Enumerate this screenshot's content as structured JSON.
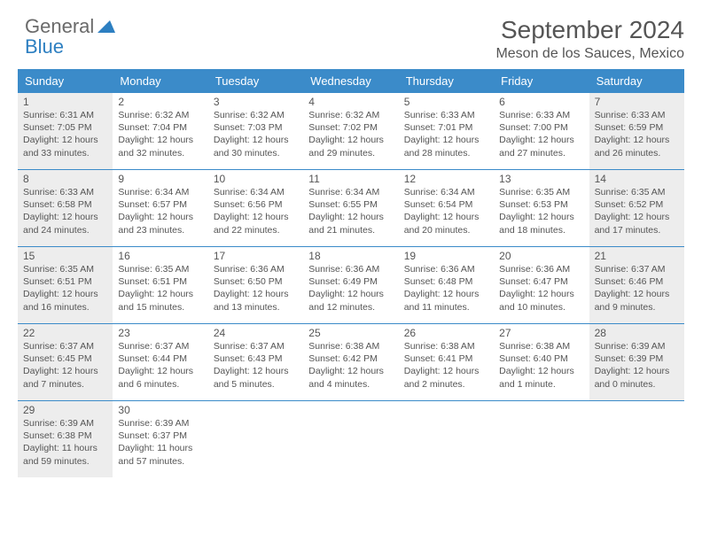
{
  "brand": {
    "part1": "General",
    "part2": "Blue"
  },
  "title": "September 2024",
  "location": "Meson de los Sauces, Mexico",
  "colors": {
    "header_bg": "#3b8bc9",
    "header_text": "#ffffff",
    "shaded_bg": "#ededed",
    "border": "#3b8bc9",
    "text": "#555555",
    "brand_blue": "#2d7fc1"
  },
  "day_names": [
    "Sunday",
    "Monday",
    "Tuesday",
    "Wednesday",
    "Thursday",
    "Friday",
    "Saturday"
  ],
  "weeks": [
    [
      {
        "n": "1",
        "shaded": true,
        "sr": "Sunrise: 6:31 AM",
        "ss": "Sunset: 7:05 PM",
        "dl1": "Daylight: 12 hours",
        "dl2": "and 33 minutes."
      },
      {
        "n": "2",
        "shaded": false,
        "sr": "Sunrise: 6:32 AM",
        "ss": "Sunset: 7:04 PM",
        "dl1": "Daylight: 12 hours",
        "dl2": "and 32 minutes."
      },
      {
        "n": "3",
        "shaded": false,
        "sr": "Sunrise: 6:32 AM",
        "ss": "Sunset: 7:03 PM",
        "dl1": "Daylight: 12 hours",
        "dl2": "and 30 minutes."
      },
      {
        "n": "4",
        "shaded": false,
        "sr": "Sunrise: 6:32 AM",
        "ss": "Sunset: 7:02 PM",
        "dl1": "Daylight: 12 hours",
        "dl2": "and 29 minutes."
      },
      {
        "n": "5",
        "shaded": false,
        "sr": "Sunrise: 6:33 AM",
        "ss": "Sunset: 7:01 PM",
        "dl1": "Daylight: 12 hours",
        "dl2": "and 28 minutes."
      },
      {
        "n": "6",
        "shaded": false,
        "sr": "Sunrise: 6:33 AM",
        "ss": "Sunset: 7:00 PM",
        "dl1": "Daylight: 12 hours",
        "dl2": "and 27 minutes."
      },
      {
        "n": "7",
        "shaded": true,
        "sr": "Sunrise: 6:33 AM",
        "ss": "Sunset: 6:59 PM",
        "dl1": "Daylight: 12 hours",
        "dl2": "and 26 minutes."
      }
    ],
    [
      {
        "n": "8",
        "shaded": true,
        "sr": "Sunrise: 6:33 AM",
        "ss": "Sunset: 6:58 PM",
        "dl1": "Daylight: 12 hours",
        "dl2": "and 24 minutes."
      },
      {
        "n": "9",
        "shaded": false,
        "sr": "Sunrise: 6:34 AM",
        "ss": "Sunset: 6:57 PM",
        "dl1": "Daylight: 12 hours",
        "dl2": "and 23 minutes."
      },
      {
        "n": "10",
        "shaded": false,
        "sr": "Sunrise: 6:34 AM",
        "ss": "Sunset: 6:56 PM",
        "dl1": "Daylight: 12 hours",
        "dl2": "and 22 minutes."
      },
      {
        "n": "11",
        "shaded": false,
        "sr": "Sunrise: 6:34 AM",
        "ss": "Sunset: 6:55 PM",
        "dl1": "Daylight: 12 hours",
        "dl2": "and 21 minutes."
      },
      {
        "n": "12",
        "shaded": false,
        "sr": "Sunrise: 6:34 AM",
        "ss": "Sunset: 6:54 PM",
        "dl1": "Daylight: 12 hours",
        "dl2": "and 20 minutes."
      },
      {
        "n": "13",
        "shaded": false,
        "sr": "Sunrise: 6:35 AM",
        "ss": "Sunset: 6:53 PM",
        "dl1": "Daylight: 12 hours",
        "dl2": "and 18 minutes."
      },
      {
        "n": "14",
        "shaded": true,
        "sr": "Sunrise: 6:35 AM",
        "ss": "Sunset: 6:52 PM",
        "dl1": "Daylight: 12 hours",
        "dl2": "and 17 minutes."
      }
    ],
    [
      {
        "n": "15",
        "shaded": true,
        "sr": "Sunrise: 6:35 AM",
        "ss": "Sunset: 6:51 PM",
        "dl1": "Daylight: 12 hours",
        "dl2": "and 16 minutes."
      },
      {
        "n": "16",
        "shaded": false,
        "sr": "Sunrise: 6:35 AM",
        "ss": "Sunset: 6:51 PM",
        "dl1": "Daylight: 12 hours",
        "dl2": "and 15 minutes."
      },
      {
        "n": "17",
        "shaded": false,
        "sr": "Sunrise: 6:36 AM",
        "ss": "Sunset: 6:50 PM",
        "dl1": "Daylight: 12 hours",
        "dl2": "and 13 minutes."
      },
      {
        "n": "18",
        "shaded": false,
        "sr": "Sunrise: 6:36 AM",
        "ss": "Sunset: 6:49 PM",
        "dl1": "Daylight: 12 hours",
        "dl2": "and 12 minutes."
      },
      {
        "n": "19",
        "shaded": false,
        "sr": "Sunrise: 6:36 AM",
        "ss": "Sunset: 6:48 PM",
        "dl1": "Daylight: 12 hours",
        "dl2": "and 11 minutes."
      },
      {
        "n": "20",
        "shaded": false,
        "sr": "Sunrise: 6:36 AM",
        "ss": "Sunset: 6:47 PM",
        "dl1": "Daylight: 12 hours",
        "dl2": "and 10 minutes."
      },
      {
        "n": "21",
        "shaded": true,
        "sr": "Sunrise: 6:37 AM",
        "ss": "Sunset: 6:46 PM",
        "dl1": "Daylight: 12 hours",
        "dl2": "and 9 minutes."
      }
    ],
    [
      {
        "n": "22",
        "shaded": true,
        "sr": "Sunrise: 6:37 AM",
        "ss": "Sunset: 6:45 PM",
        "dl1": "Daylight: 12 hours",
        "dl2": "and 7 minutes."
      },
      {
        "n": "23",
        "shaded": false,
        "sr": "Sunrise: 6:37 AM",
        "ss": "Sunset: 6:44 PM",
        "dl1": "Daylight: 12 hours",
        "dl2": "and 6 minutes."
      },
      {
        "n": "24",
        "shaded": false,
        "sr": "Sunrise: 6:37 AM",
        "ss": "Sunset: 6:43 PM",
        "dl1": "Daylight: 12 hours",
        "dl2": "and 5 minutes."
      },
      {
        "n": "25",
        "shaded": false,
        "sr": "Sunrise: 6:38 AM",
        "ss": "Sunset: 6:42 PM",
        "dl1": "Daylight: 12 hours",
        "dl2": "and 4 minutes."
      },
      {
        "n": "26",
        "shaded": false,
        "sr": "Sunrise: 6:38 AM",
        "ss": "Sunset: 6:41 PM",
        "dl1": "Daylight: 12 hours",
        "dl2": "and 2 minutes."
      },
      {
        "n": "27",
        "shaded": false,
        "sr": "Sunrise: 6:38 AM",
        "ss": "Sunset: 6:40 PM",
        "dl1": "Daylight: 12 hours",
        "dl2": "and 1 minute."
      },
      {
        "n": "28",
        "shaded": true,
        "sr": "Sunrise: 6:39 AM",
        "ss": "Sunset: 6:39 PM",
        "dl1": "Daylight: 12 hours",
        "dl2": "and 0 minutes."
      }
    ],
    [
      {
        "n": "29",
        "shaded": true,
        "sr": "Sunrise: 6:39 AM",
        "ss": "Sunset: 6:38 PM",
        "dl1": "Daylight: 11 hours",
        "dl2": "and 59 minutes."
      },
      {
        "n": "30",
        "shaded": false,
        "sr": "Sunrise: 6:39 AM",
        "ss": "Sunset: 6:37 PM",
        "dl1": "Daylight: 11 hours",
        "dl2": "and 57 minutes."
      },
      {
        "n": "",
        "shaded": false
      },
      {
        "n": "",
        "shaded": false
      },
      {
        "n": "",
        "shaded": false
      },
      {
        "n": "",
        "shaded": false
      },
      {
        "n": "",
        "shaded": false
      }
    ]
  ]
}
